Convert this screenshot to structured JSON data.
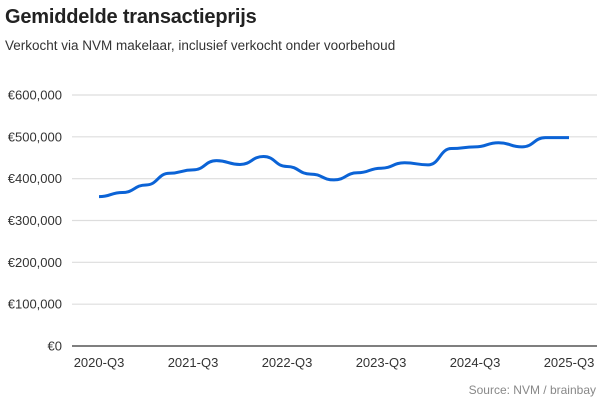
{
  "chart_data": {
    "type": "line",
    "title": "Gemiddelde transactieprijs",
    "subtitle": "Verkocht via NVM makelaar, inclusief verkocht onder voorbehoud",
    "source": "Source: NVM / brainbay",
    "xlabel": "",
    "ylabel": "",
    "ylim": [
      0,
      600000
    ],
    "yticks": [
      0,
      100000,
      200000,
      300000,
      400000,
      500000,
      600000
    ],
    "ytick_labels": [
      "€0",
      "€100,000",
      "€200,000",
      "€300,000",
      "€400,000",
      "€500,000",
      "€600,000"
    ],
    "x": [
      "2020-Q3",
      "2020-Q4",
      "2021-Q1",
      "2021-Q2",
      "2021-Q3",
      "2021-Q4",
      "2022-Q1",
      "2022-Q2",
      "2022-Q3",
      "2022-Q4",
      "2023-Q1",
      "2023-Q2",
      "2023-Q3",
      "2023-Q4",
      "2024-Q1",
      "2024-Q2",
      "2024-Q3",
      "2024-Q4",
      "2025-Q1",
      "2025-Q2",
      "2025-Q3"
    ],
    "xtick_labels": [
      "2020-Q3",
      "2021-Q3",
      "2022-Q3",
      "2023-Q3",
      "2024-Q3",
      "2025-Q3"
    ],
    "grid": true,
    "series": [
      {
        "name": "Gemiddelde transactieprijs",
        "color": "#0b63d6",
        "values": [
          357000,
          367000,
          385000,
          413000,
          421000,
          443000,
          434000,
          453000,
          429000,
          411000,
          397000,
          414000,
          425000,
          438000,
          433000,
          472000,
          476000,
          486000,
          476000,
          498000,
          498000
        ]
      }
    ]
  }
}
